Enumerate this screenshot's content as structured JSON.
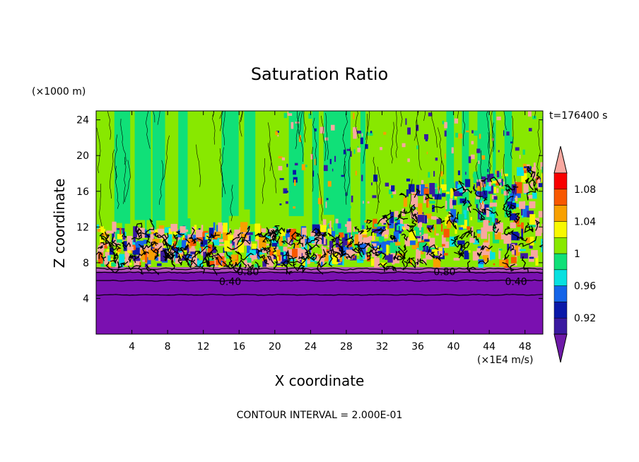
{
  "chart_data": {
    "type": "heatmap",
    "title": "Saturation Ratio",
    "xlabel": "X coordinate",
    "ylabel": "Z coordinate",
    "x_unit": "(×1E4 m/s)",
    "y_unit": "(×1000 m)",
    "time_label": "t=176400 s",
    "footer": "CONTOUR INTERVAL = 2.000E-01",
    "xlim": [
      0,
      50
    ],
    "ylim": [
      0,
      25
    ],
    "x_ticks": [
      4,
      8,
      12,
      16,
      20,
      24,
      28,
      32,
      36,
      40,
      44,
      48
    ],
    "y_ticks": [
      4,
      8,
      12,
      16,
      20,
      24
    ],
    "contour_labels": [
      {
        "text": "0.80",
        "x": 17.0,
        "z": 7.0
      },
      {
        "text": "0.80",
        "x": 39.0,
        "z": 7.0
      },
      {
        "text": "0.40",
        "x": 15.0,
        "z": 5.9
      },
      {
        "text": "0.40",
        "x": 47.0,
        "z": 5.9
      }
    ],
    "colorbar": {
      "levels": [
        0.9,
        0.92,
        0.94,
        0.96,
        0.98,
        1.0,
        1.02,
        1.04,
        1.06,
        1.08,
        1.1
      ],
      "colors": [
        "#6e1aa8",
        "#3a1aa0",
        "#0a18a8",
        "#1464e8",
        "#08e0e0",
        "#10e078",
        "#88e800",
        "#f8f800",
        "#f8a000",
        "#f85800",
        "#f80000",
        "#f8a8a0"
      ],
      "tick_labels": [
        "0.92",
        "0.96",
        "1",
        "1.04",
        "1.08"
      ],
      "tick_values": [
        0.92,
        0.96,
        1.0,
        1.04,
        1.08
      ]
    },
    "field_colors": {
      "dry_low": "#7a10b0",
      "boundary": "#b050b8",
      "upper": "#88e800",
      "upper_alt": "#10e078",
      "mixed": "#f8a8a0"
    }
  }
}
